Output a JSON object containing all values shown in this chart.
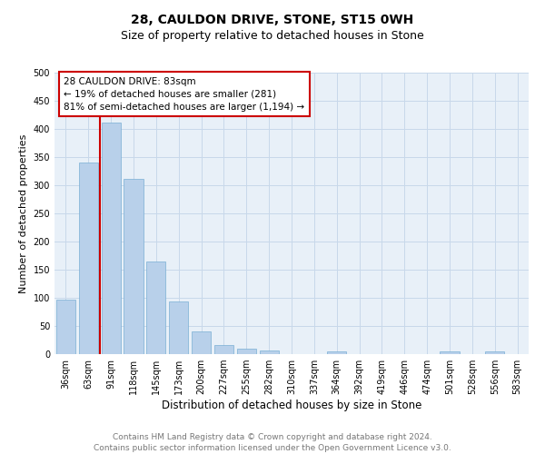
{
  "title": "28, CAULDON DRIVE, STONE, ST15 0WH",
  "subtitle": "Size of property relative to detached houses in Stone",
  "xlabel": "Distribution of detached houses by size in Stone",
  "ylabel": "Number of detached properties",
  "bar_labels": [
    "36sqm",
    "63sqm",
    "91sqm",
    "118sqm",
    "145sqm",
    "173sqm",
    "200sqm",
    "227sqm",
    "255sqm",
    "282sqm",
    "310sqm",
    "337sqm",
    "364sqm",
    "392sqm",
    "419sqm",
    "446sqm",
    "474sqm",
    "501sqm",
    "528sqm",
    "556sqm",
    "583sqm"
  ],
  "bar_values": [
    97,
    340,
    411,
    311,
    164,
    94,
    41,
    16,
    10,
    7,
    0,
    0,
    5,
    0,
    0,
    0,
    0,
    5,
    0,
    5,
    0
  ],
  "bar_color": "#b8d0ea",
  "bar_edgecolor": "#7aafd4",
  "vline_x": 2.0,
  "vline_color": "#cc0000",
  "annotation_text": "28 CAULDON DRIVE: 83sqm\n← 19% of detached houses are smaller (281)\n81% of semi-detached houses are larger (1,194) →",
  "annotation_box_edgecolor": "#cc0000",
  "ylim": [
    0,
    500
  ],
  "yticks": [
    0,
    50,
    100,
    150,
    200,
    250,
    300,
    350,
    400,
    450,
    500
  ],
  "grid_color": "#c8d8ea",
  "bg_color": "#e8f0f8",
  "footer_text": "Contains HM Land Registry data © Crown copyright and database right 2024.\nContains public sector information licensed under the Open Government Licence v3.0.",
  "title_fontsize": 10,
  "subtitle_fontsize": 9,
  "annotation_fontsize": 7.5,
  "tick_fontsize": 7,
  "ylabel_fontsize": 8,
  "xlabel_fontsize": 8.5,
  "footer_fontsize": 6.5
}
